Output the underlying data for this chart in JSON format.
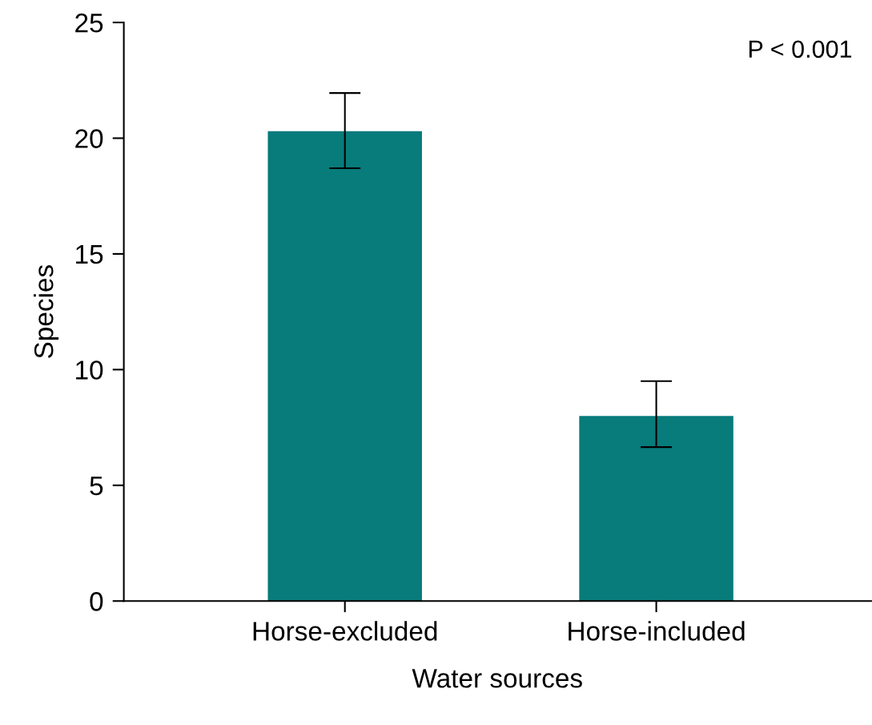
{
  "chart_data": {
    "type": "bar",
    "xlabel": "Water sources",
    "ylabel": "Species",
    "categories": [
      "Horse-excluded",
      "Horse-included"
    ],
    "series": [
      {
        "color": "#087b7b",
        "values": [
          20.3,
          8.0
        ],
        "errors": [
          [
            18.7,
            21.95
          ],
          [
            6.65,
            9.5
          ]
        ]
      }
    ],
    "ylim": [
      0,
      25
    ],
    "yticks": [
      0,
      5,
      10,
      15,
      20,
      25
    ],
    "grid": false,
    "legend": false,
    "annotations": [
      "P < 0.001"
    ]
  }
}
